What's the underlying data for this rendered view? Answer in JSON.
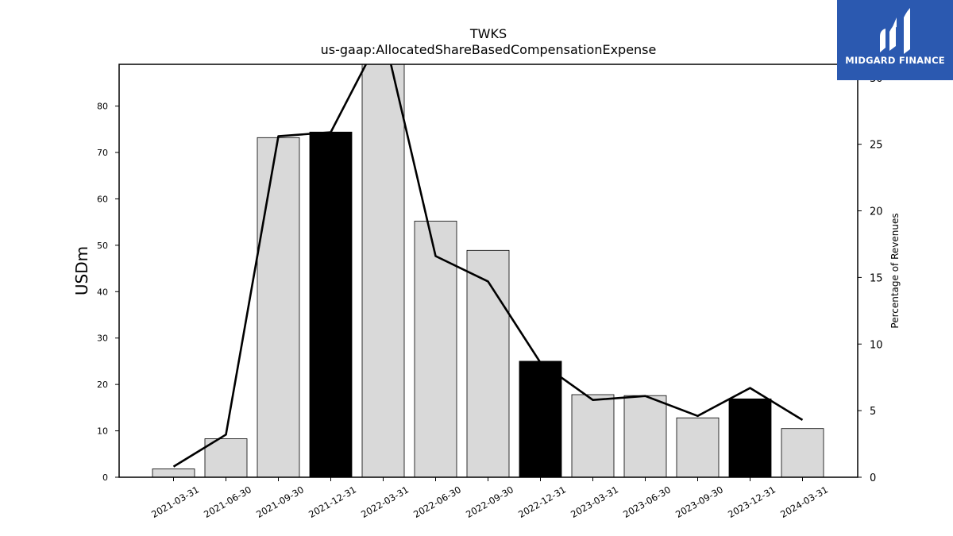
{
  "chart_data": {
    "type": "bar",
    "title": "TWKS",
    "subtitle": "us-gaap:AllocatedShareBasedCompensationExpense",
    "ylabel": "USDm",
    "y2label": "Percentage of Revenues",
    "categories": [
      "2021-03-31",
      "2021-06-30",
      "2021-09-30",
      "2021-12-31",
      "2022-03-31",
      "2022-06-30",
      "2022-09-30",
      "2022-12-31",
      "2023-03-31",
      "2023-06-30",
      "2023-09-30",
      "2023-12-31",
      "2024-03-31"
    ],
    "highlight": [
      false,
      false,
      false,
      true,
      false,
      false,
      false,
      true,
      false,
      false,
      false,
      true,
      false
    ],
    "series": [
      {
        "values": [
          1.8,
          8.3,
          73.2,
          74.4,
          90.0,
          55.2,
          48.9,
          25.0,
          17.8,
          17.6,
          12.8,
          16.9,
          10.5
        ]
      },
      {
        "axis": "right",
        "values": [
          0.8,
          3.2,
          25.6,
          25.9,
          33.5,
          16.6,
          14.7,
          8.6,
          5.8,
          6.1,
          4.6,
          6.7,
          4.3
        ]
      }
    ],
    "yticks": [
      0,
      10,
      20,
      30,
      40,
      50,
      60,
      70,
      80
    ],
    "y2ticks": [
      0,
      5,
      10,
      15,
      20,
      25,
      30
    ],
    "ylim": [
      0,
      89
    ],
    "y2lim": [
      0,
      31
    ],
    "grid": false,
    "colors": {
      "bar": "#d9d9d9",
      "bar_highlight": "#000000",
      "line": "#000000"
    }
  },
  "logo": {
    "text": "MIDGARD FINANCE",
    "color": "#2b59b0"
  }
}
